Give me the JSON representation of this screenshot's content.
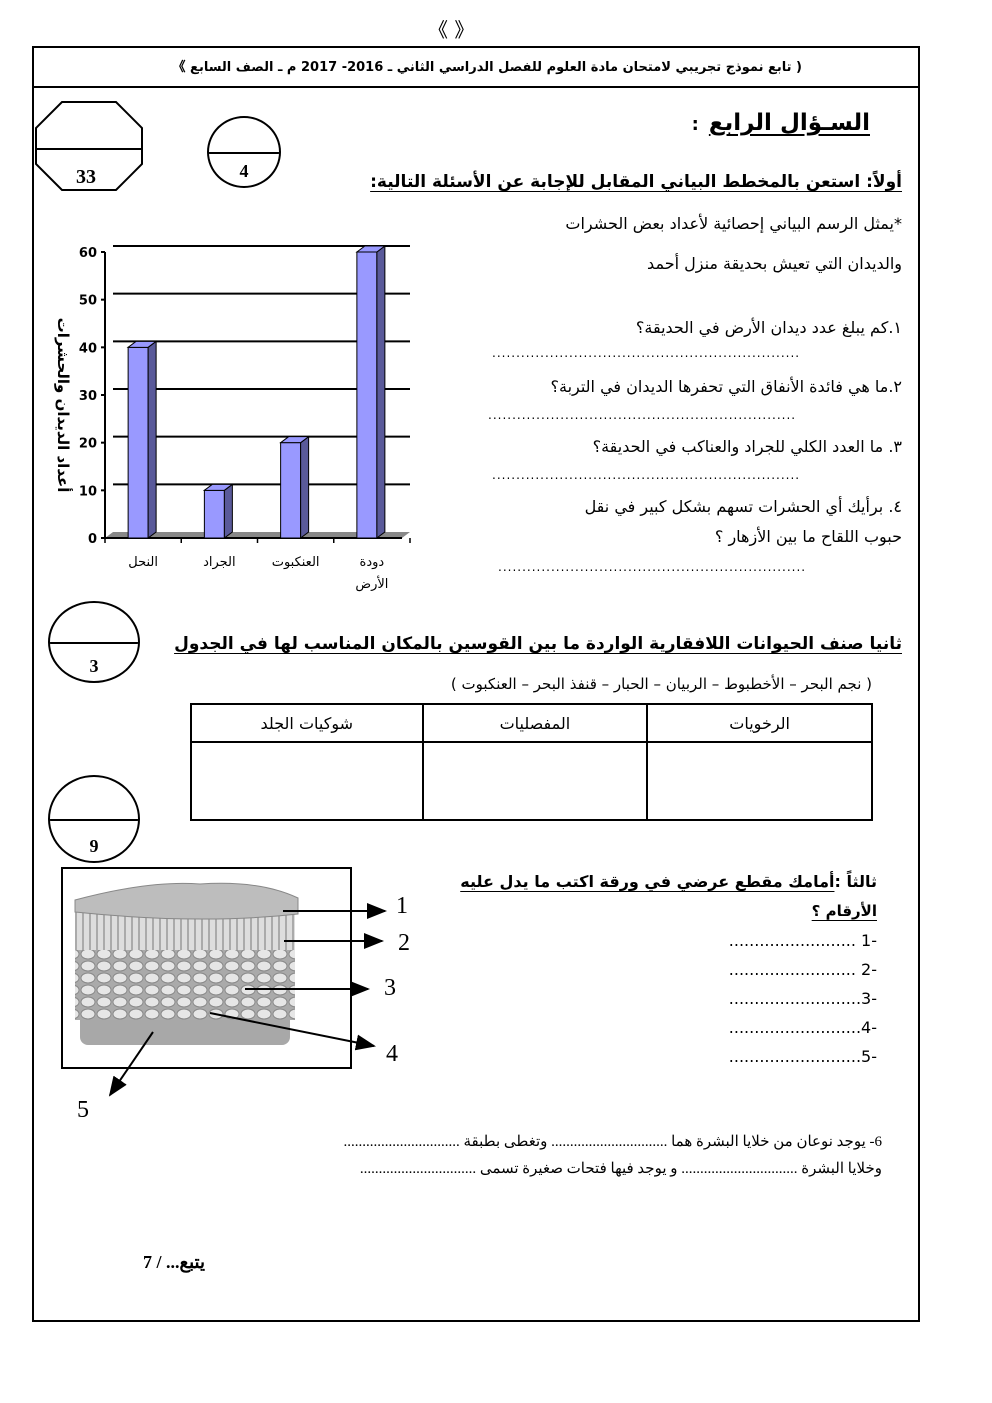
{
  "header": {
    "ornament": "《  》",
    "title": "( تابع نموذج تجريبي لامتحان مادة العلوم للفصل الدراسي الثاني ـ 2016-   2017  م ـ الصف السابع 》"
  },
  "scores": {
    "total": "33",
    "part1": "4",
    "part2": "3",
    "part3": "9"
  },
  "question": {
    "title": "السـؤال الرابع",
    "section1": {
      "heading": "أولاً: استعن بالمخطط البياني المقابل للإجابة عن الأسئلة التالية:",
      "intro1": "*يمثل الرسم البياني إحصائية لأعداد بعض الحشرات",
      "intro2": "والديدان التي تعيش بحديقة منزل أحمد",
      "items": [
        {
          "text": "١.كم يبلغ عدد ديدان الأرض في الحديقة؟",
          "answer": "................................................................"
        },
        {
          "text": "٢.ما هي فائدة الأنفاق التي تحفرها الديدان في التربة؟",
          "answer": "................................................................"
        },
        {
          "text": "٣. ما العدد الكلي للجراد والعناكب في الحديقة؟",
          "answer": "................................................................"
        },
        {
          "text": "٤. برأيك أي الحشرات تسهم بشكل كبير  في نقل",
          "text2": "حبوب اللقاح ما بين الأزهار  ؟",
          "answer": "................................................................"
        }
      ]
    },
    "section2": {
      "heading": "ثانيا صنف الحيوانات اللافقارية الواردة ما بين القوسين بالمكان المناسب لها في الجدول",
      "list": "( نجم البحر  – الأخطبوط – الربيان – الحبار – قنفذ البحر  – العنكبوت )",
      "columns": [
        "الرخويات",
        "المفصليات",
        "شوكيات الجلد"
      ]
    },
    "section3": {
      "heading_label": "ثالثاً :",
      "heading": "أمامك مقطع عرضي في ورقة اكتب ما يدل عليه",
      "heading2": "الأرقام ؟",
      "items": [
        "-1  .........................",
        "-2 .........................",
        "-3..........................",
        "-4..........................",
        "-5.........................."
      ],
      "diagram_labels": [
        "1",
        "2",
        "3",
        "4",
        "5"
      ],
      "fill1": "6- يوجد نوعان من خلايا البشرة هما ............................... وتغطى بطبقة ...............................",
      "fill2": "وخلايا البشرة   ............................... و يوجد فيها فتحات صغيرة تسمى ..............................."
    }
  },
  "footer": {
    "continue": "يتبع... / 7"
  },
  "chart_data": {
    "type": "bar",
    "categories": [
      "النحل",
      "الجراد",
      "العنكبوت",
      "دودة الأرض"
    ],
    "category_lines": [
      [
        "النحل"
      ],
      [
        "الجراد"
      ],
      [
        "العنكبوت"
      ],
      [
        "دودة",
        "الأرض"
      ]
    ],
    "values": [
      40,
      10,
      20,
      60
    ],
    "ylabel": "أعداد الديدان والحشرات",
    "ylim": [
      0,
      60
    ],
    "yticks": [
      0,
      10,
      20,
      30,
      40,
      50,
      60
    ],
    "grid": true,
    "bar_color": "#9999ff",
    "bar_side_color": "#5a5a9a"
  }
}
